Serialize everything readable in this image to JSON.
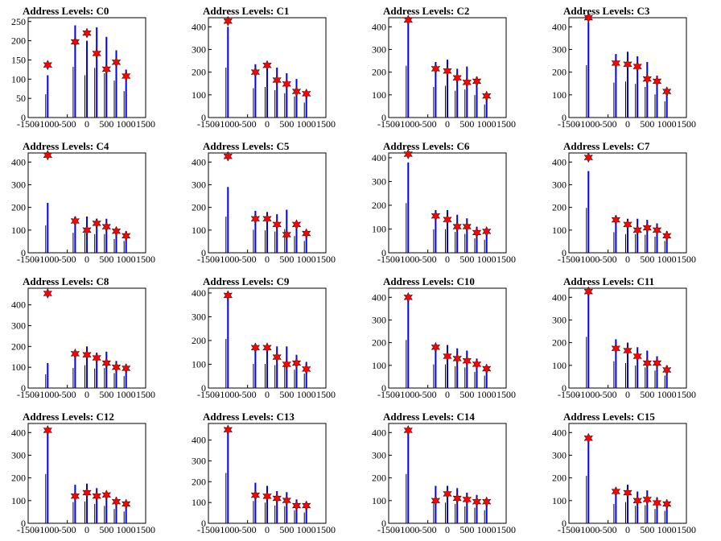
{
  "chart_data": [
    {
      "type": "bar",
      "title": "Address Levels: C0",
      "xlim": [
        -1500,
        1500
      ],
      "ylim": [
        0,
        260
      ],
      "yticks": [
        0,
        50,
        100,
        150,
        200,
        250
      ],
      "xticks": [
        -1500,
        -1000,
        -500,
        0,
        500,
        1000,
        1500
      ],
      "x": [
        -1000,
        -300,
        0,
        250,
        500,
        750,
        1000
      ],
      "peaks": [
        137,
        197,
        220,
        167,
        126,
        144,
        108
      ],
      "heights": [
        110,
        240,
        200,
        235,
        210,
        175,
        125
      ]
    },
    {
      "type": "bar",
      "title": "Address Levels: C1",
      "xlim": [
        -1500,
        1500
      ],
      "ylim": [
        0,
        440
      ],
      "yticks": [
        0,
        100,
        200,
        300,
        400
      ],
      "xticks": [
        -1500,
        -1000,
        -500,
        0,
        500,
        1000,
        1500
      ],
      "x": [
        -1000,
        -300,
        0,
        250,
        500,
        750,
        1000
      ],
      "peaks": [
        425,
        200,
        230,
        165,
        148,
        115,
        105
      ],
      "heights": [
        400,
        235,
        245,
        220,
        195,
        170,
        120
      ]
    },
    {
      "type": "bar",
      "title": "Address Levels: C2",
      "xlim": [
        -1500,
        1500
      ],
      "ylim": [
        0,
        440
      ],
      "yticks": [
        0,
        100,
        200,
        300,
        400
      ],
      "xticks": [
        -1500,
        -1000,
        -500,
        0,
        500,
        1000,
        1500
      ],
      "x": [
        -1000,
        -300,
        0,
        250,
        500,
        750,
        1000
      ],
      "peaks": [
        430,
        215,
        205,
        175,
        155,
        160,
        95
      ],
      "heights": [
        415,
        245,
        255,
        215,
        225,
        180,
        105
      ]
    },
    {
      "type": "bar",
      "title": "Address Levels: C3",
      "xlim": [
        -1500,
        1500
      ],
      "ylim": [
        0,
        440
      ],
      "yticks": [
        0,
        100,
        200,
        300,
        400
      ],
      "xticks": [
        -1500,
        -1000,
        -500,
        0,
        500,
        1000,
        1500
      ],
      "x": [
        -1000,
        -300,
        0,
        250,
        500,
        750,
        1000
      ],
      "peaks": [
        440,
        240,
        235,
        225,
        170,
        160,
        115
      ],
      "heights": [
        420,
        280,
        290,
        270,
        245,
        185,
        130
      ]
    },
    {
      "type": "bar",
      "title": "Address Levels: C4",
      "xlim": [
        -1500,
        1500
      ],
      "ylim": [
        0,
        440
      ],
      "yticks": [
        0,
        100,
        200,
        300,
        400
      ],
      "xticks": [
        -1500,
        -1000,
        -500,
        0,
        500,
        1000,
        1500
      ],
      "x": [
        -1000,
        -300,
        0,
        250,
        500,
        750,
        1000
      ],
      "peaks": [
        430,
        140,
        100,
        130,
        115,
        95,
        75
      ],
      "heights": [
        220,
        160,
        160,
        150,
        150,
        110,
        95
      ]
    },
    {
      "type": "bar",
      "title": "Address Levels: C5",
      "xlim": [
        -1500,
        1500
      ],
      "ylim": [
        0,
        440
      ],
      "yticks": [
        0,
        100,
        200,
        300,
        400
      ],
      "xticks": [
        -1500,
        -1000,
        -500,
        0,
        500,
        1000,
        1500
      ],
      "x": [
        -1000,
        -300,
        0,
        250,
        500,
        750,
        1000
      ],
      "peaks": [
        425,
        150,
        150,
        125,
        80,
        125,
        85
      ],
      "heights": [
        290,
        185,
        180,
        170,
        190,
        135,
        95
      ]
    },
    {
      "type": "bar",
      "title": "Address Levels: C6",
      "xlim": [
        -1500,
        1500
      ],
      "ylim": [
        0,
        420
      ],
      "yticks": [
        0,
        100,
        200,
        300,
        400
      ],
      "xticks": [
        -1500,
        -1000,
        -500,
        0,
        500,
        1000,
        1500
      ],
      "x": [
        -1000,
        -300,
        0,
        250,
        500,
        750,
        1000
      ],
      "peaks": [
        415,
        155,
        140,
        110,
        110,
        85,
        90
      ],
      "heights": [
        380,
        180,
        180,
        160,
        145,
        110,
        100
      ]
    },
    {
      "type": "bar",
      "title": "Address Levels: C7",
      "xlim": [
        -1500,
        1500
      ],
      "ylim": [
        0,
        440
      ],
      "yticks": [
        0,
        100,
        200,
        300,
        400
      ],
      "xticks": [
        -1500,
        -1000,
        -500,
        0,
        500,
        1000,
        1500
      ],
      "x": [
        -1000,
        -300,
        0,
        250,
        500,
        750,
        1000
      ],
      "peaks": [
        420,
        145,
        125,
        100,
        110,
        100,
        75
      ],
      "heights": [
        360,
        165,
        150,
        150,
        145,
        130,
        95
      ]
    },
    {
      "type": "bar",
      "title": "Address Levels: C8",
      "xlim": [
        -1500,
        1500
      ],
      "ylim": [
        0,
        480
      ],
      "yticks": [
        0,
        100,
        200,
        300,
        400
      ],
      "xticks": [
        -1500,
        -1000,
        -500,
        0,
        500,
        1000,
        1500
      ],
      "x": [
        -1000,
        -300,
        0,
        250,
        500,
        750,
        1000
      ],
      "peaks": [
        455,
        165,
        160,
        145,
        120,
        100,
        95
      ],
      "heights": [
        120,
        175,
        200,
        170,
        175,
        130,
        105
      ]
    },
    {
      "type": "bar",
      "title": "Address Levels: C9",
      "xlim": [
        -1500,
        1500
      ],
      "ylim": [
        0,
        420
      ],
      "yticks": [
        0,
        100,
        200,
        300,
        400
      ],
      "xticks": [
        -1500,
        -1000,
        -500,
        0,
        500,
        1000,
        1500
      ],
      "x": [
        -1000,
        -300,
        0,
        250,
        500,
        750,
        1000
      ],
      "peaks": [
        390,
        170,
        170,
        130,
        100,
        105,
        80
      ],
      "heights": [
        375,
        185,
        185,
        175,
        175,
        140,
        110
      ]
    },
    {
      "type": "bar",
      "title": "Address Levels: C10",
      "xlim": [
        -1500,
        1500
      ],
      "ylim": [
        0,
        440
      ],
      "yticks": [
        0,
        100,
        200,
        300,
        400
      ],
      "xticks": [
        -1500,
        -1000,
        -500,
        0,
        500,
        1000,
        1500
      ],
      "x": [
        -1000,
        -300,
        0,
        250,
        500,
        750,
        1000
      ],
      "peaks": [
        400,
        180,
        140,
        130,
        120,
        105,
        85
      ],
      "heights": [
        385,
        190,
        190,
        175,
        165,
        130,
        100
      ]
    },
    {
      "type": "bar",
      "title": "Address Levels: C11",
      "xlim": [
        -1500,
        1500
      ],
      "ylim": [
        0,
        440
      ],
      "yticks": [
        0,
        100,
        200,
        300,
        400
      ],
      "xticks": [
        -1500,
        -1000,
        -500,
        0,
        500,
        1000,
        1500
      ],
      "x": [
        -1000,
        -300,
        0,
        250,
        500,
        750,
        1000
      ],
      "peaks": [
        425,
        175,
        165,
        140,
        110,
        110,
        80
      ],
      "heights": [
        410,
        215,
        200,
        180,
        165,
        140,
        100
      ]
    },
    {
      "type": "bar",
      "title": "Address Levels: C12",
      "xlim": [
        -1500,
        1500
      ],
      "ylim": [
        0,
        440
      ],
      "yticks": [
        0,
        100,
        200,
        300,
        400
      ],
      "xticks": [
        -1500,
        -1000,
        -500,
        0,
        500,
        1000,
        1500
      ],
      "x": [
        -1000,
        -300,
        0,
        250,
        500,
        750,
        1000
      ],
      "peaks": [
        410,
        120,
        135,
        120,
        125,
        95,
        85
      ],
      "heights": [
        395,
        170,
        175,
        155,
        140,
        115,
        95
      ]
    },
    {
      "type": "bar",
      "title": "Address Levels: C13",
      "xlim": [
        -1500,
        1500
      ],
      "ylim": [
        0,
        480
      ],
      "yticks": [
        0,
        100,
        200,
        300,
        400
      ],
      "xticks": [
        -1500,
        -1000,
        -500,
        0,
        500,
        1000,
        1500
      ],
      "x": [
        -1000,
        -300,
        0,
        250,
        500,
        750,
        1000
      ],
      "peaks": [
        450,
        135,
        130,
        120,
        110,
        85,
        85
      ],
      "heights": [
        440,
        195,
        180,
        155,
        150,
        115,
        95
      ]
    },
    {
      "type": "bar",
      "title": "Address Levels: C14",
      "xlim": [
        -1500,
        1500
      ],
      "ylim": [
        0,
        440
      ],
      "yticks": [
        0,
        100,
        200,
        300,
        400
      ],
      "xticks": [
        -1500,
        -1000,
        -500,
        0,
        500,
        1000,
        1500
      ],
      "x": [
        -1000,
        -300,
        0,
        250,
        500,
        750,
        1000
      ],
      "peaks": [
        410,
        100,
        130,
        110,
        105,
        95,
        95
      ],
      "heights": [
        395,
        165,
        165,
        155,
        135,
        125,
        105
      ]
    },
    {
      "type": "bar",
      "title": "Address Levels: C15",
      "xlim": [
        -1500,
        1500
      ],
      "ylim": [
        0,
        440
      ],
      "yticks": [
        0,
        100,
        200,
        300,
        400
      ],
      "xticks": [
        -1500,
        -1000,
        -500,
        0,
        500,
        1000,
        1500
      ],
      "x": [
        -1000,
        -300,
        0,
        250,
        500,
        750,
        1000
      ],
      "peaks": [
        375,
        140,
        135,
        100,
        105,
        90,
        85
      ],
      "heights": [
        380,
        155,
        170,
        140,
        145,
        115,
        100
      ]
    }
  ],
  "colors": {
    "bars": "#0000ff",
    "outline": "#000000",
    "marker": "#ff0000"
  }
}
